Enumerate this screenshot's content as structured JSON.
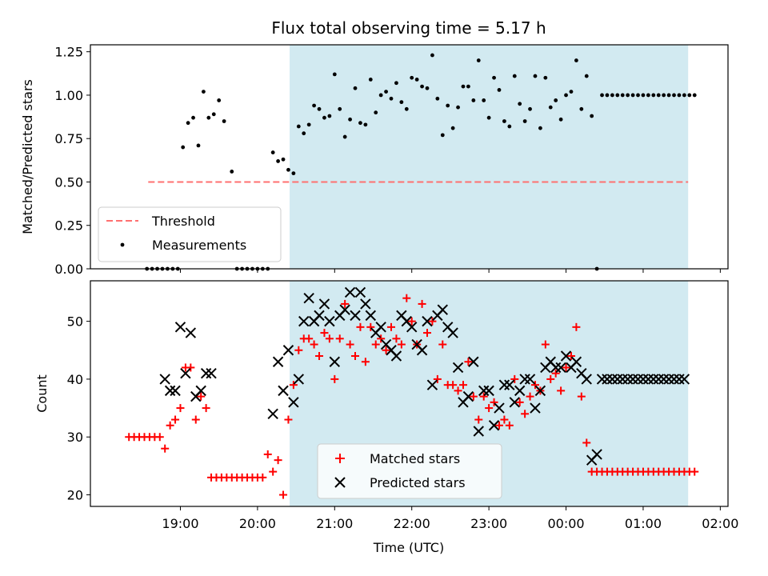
{
  "chart_data": [
    {
      "type": "scatter",
      "title": "Flux total observing time = 5.17 h",
      "ylabel": "Matched/Predicted stars",
      "xlabel": "",
      "x_unit": "minutes after 18:00 UTC",
      "xlim": [
        -10,
        486
      ],
      "ylim": [
        0,
        1.29
      ],
      "yticks": [
        0.0,
        0.25,
        0.5,
        0.75,
        1.0,
        1.25
      ],
      "ytick_labels": [
        "0.00",
        "0.25",
        "0.50",
        "0.75",
        "1.00",
        "1.25"
      ],
      "shaded_span": [
        145,
        455
      ],
      "shade_color": "#add8e6",
      "threshold": {
        "name": "Threshold",
        "value": 0.5,
        "x_range": [
          35,
          455
        ],
        "color": "#ff7070"
      },
      "legend": {
        "position": "lower-left",
        "entries": [
          "Threshold",
          "Measurements"
        ]
      },
      "series": [
        {
          "name": "Measurements",
          "color": "#000000",
          "x": [
            34,
            38,
            42,
            46,
            50,
            54,
            58,
            62,
            66,
            70,
            74,
            78,
            82,
            86,
            90,
            94,
            100,
            104,
            108,
            112,
            116,
            120,
            124,
            128,
            132,
            136,
            140,
            144,
            148,
            152,
            156,
            160,
            164,
            168,
            172,
            176,
            180,
            184,
            188,
            192,
            196,
            200,
            204,
            208,
            212,
            216,
            220,
            224,
            228,
            232,
            236,
            240,
            244,
            248,
            252,
            256,
            260,
            264,
            268,
            272,
            276,
            280,
            284,
            288,
            292,
            296,
            300,
            304,
            308,
            312,
            316,
            320,
            324,
            328,
            332,
            336,
            340,
            344,
            348,
            352,
            356,
            360,
            364,
            368,
            372,
            376,
            380,
            384,
            388,
            392,
            396,
            400,
            404,
            408,
            412,
            416,
            420,
            424,
            428,
            432,
            436,
            440,
            444,
            448,
            452,
            456,
            460
          ],
          "y": [
            0,
            0,
            0,
            0,
            0,
            0,
            0,
            0.7,
            0.84,
            0.87,
            0.71,
            1.02,
            0.87,
            0.89,
            0.97,
            0.85,
            0.56,
            0,
            0,
            0,
            0,
            0,
            0,
            0,
            0.67,
            0.62,
            0.63,
            0.57,
            0.55,
            0.82,
            0.78,
            0.83,
            0.94,
            0.92,
            0.87,
            0.88,
            1.12,
            0.92,
            0.76,
            0.86,
            1.04,
            0.84,
            0.83,
            1.09,
            0.9,
            1.0,
            1.02,
            0.98,
            1.07,
            0.96,
            0.92,
            1.1,
            1.09,
            1.05,
            1.04,
            1.23,
            0.98,
            0.77,
            0.94,
            0.81,
            0.93,
            1.05,
            1.05,
            0.97,
            1.2,
            0.97,
            0.87,
            1.1,
            1.03,
            0.85,
            0.82,
            1.11,
            0.95,
            0.85,
            0.92,
            1.11,
            0.81,
            1.1,
            0.93,
            0.97,
            0.86,
            1.0,
            1.02,
            1.2,
            0.92,
            1.11,
            0.88,
            0.0,
            1.0,
            1.0,
            1.0,
            1.0,
            1.0,
            1.0,
            1.0,
            1.0,
            1.0,
            1.0,
            1.0,
            1.0,
            1.0,
            1.0,
            1.0,
            1.0,
            1.0,
            1.0,
            1.0
          ]
        }
      ]
    },
    {
      "type": "scatter",
      "title": "",
      "ylabel": "Count",
      "xlabel": "Time (UTC)",
      "x_unit": "minutes after 18:00 UTC",
      "xlim": [
        -10,
        486
      ],
      "ylim": [
        18,
        57
      ],
      "yticks": [
        20,
        30,
        40,
        50
      ],
      "ytick_labels": [
        "20",
        "30",
        "40",
        "50"
      ],
      "xticks": [
        60,
        120,
        180,
        240,
        300,
        360,
        420,
        480
      ],
      "xtick_labels": [
        "19:00",
        "20:00",
        "21:00",
        "22:00",
        "23:00",
        "00:00",
        "01:00",
        "02:00"
      ],
      "shaded_span": [
        145,
        455
      ],
      "shade_color": "#add8e6",
      "legend": {
        "position": "lower-center",
        "entries": [
          "Matched stars",
          "Predicted stars"
        ]
      },
      "series": [
        {
          "name": "Matched stars",
          "marker": "plus",
          "color": "#ff0000",
          "x": [
            20,
            24,
            28,
            32,
            36,
            40,
            44,
            48,
            52,
            56,
            60,
            64,
            68,
            72,
            76,
            80,
            84,
            88,
            92,
            96,
            100,
            104,
            108,
            112,
            116,
            120,
            124,
            128,
            132,
            136,
            140,
            144,
            148,
            152,
            156,
            160,
            164,
            168,
            172,
            176,
            180,
            184,
            188,
            192,
            196,
            200,
            204,
            208,
            212,
            216,
            220,
            224,
            228,
            232,
            236,
            240,
            244,
            248,
            252,
            256,
            260,
            264,
            268,
            272,
            276,
            280,
            284,
            288,
            292,
            296,
            300,
            304,
            308,
            312,
            316,
            320,
            324,
            328,
            332,
            336,
            340,
            344,
            348,
            352,
            356,
            360,
            364,
            368,
            372,
            376,
            380,
            384,
            388,
            392,
            396,
            400,
            404,
            408,
            412,
            416,
            420,
            424,
            428,
            432,
            436,
            440,
            444,
            448,
            452,
            456,
            460
          ],
          "y": [
            30,
            30,
            30,
            30,
            30,
            30,
            30,
            28,
            32,
            33,
            35,
            42,
            42,
            33,
            37,
            35,
            23,
            23,
            23,
            23,
            23,
            23,
            23,
            23,
            23,
            23,
            23,
            27,
            24,
            26,
            20,
            33,
            39,
            45,
            47,
            47,
            46,
            44,
            48,
            47,
            40,
            47,
            53,
            46,
            44,
            49,
            43,
            49,
            46,
            47,
            45,
            49,
            47,
            46,
            54,
            50,
            46,
            53,
            48,
            50,
            40,
            46,
            39,
            39,
            38,
            39,
            43,
            37,
            33,
            37,
            35,
            36,
            32,
            33,
            32,
            40,
            36,
            34,
            37,
            39,
            38,
            46,
            40,
            41,
            38,
            42,
            44,
            49,
            37,
            29,
            24,
            24,
            24,
            24,
            24,
            24,
            24,
            24,
            24,
            24,
            24,
            24,
            24,
            24,
            24,
            24,
            24,
            24,
            24,
            24,
            24
          ]
        },
        {
          "name": "Predicted stars",
          "marker": "x",
          "color": "#000000",
          "x": [
            48,
            52,
            56,
            60,
            64,
            68,
            72,
            76,
            80,
            84,
            132,
            136,
            140,
            144,
            148,
            152,
            156,
            160,
            164,
            168,
            172,
            176,
            180,
            184,
            188,
            192,
            196,
            200,
            204,
            208,
            212,
            216,
            220,
            224,
            228,
            232,
            236,
            240,
            244,
            248,
            252,
            256,
            260,
            264,
            268,
            272,
            276,
            280,
            284,
            288,
            292,
            296,
            300,
            304,
            308,
            312,
            316,
            320,
            324,
            328,
            332,
            336,
            340,
            344,
            348,
            352,
            356,
            360,
            364,
            368,
            372,
            376,
            380,
            384,
            388,
            392,
            396,
            400,
            404,
            408,
            412,
            416,
            420,
            424,
            428,
            432,
            436,
            440,
            444,
            448,
            452
          ],
          "y": [
            40,
            38,
            38,
            49,
            41,
            48,
            37,
            38,
            41,
            41,
            34,
            43,
            38,
            45,
            36,
            40,
            50,
            54,
            50,
            51,
            53,
            50,
            43,
            51,
            52,
            55,
            51,
            55,
            53,
            51,
            48,
            49,
            46,
            45,
            44,
            51,
            50,
            49,
            46,
            45,
            50,
            39,
            51,
            52,
            49,
            48,
            42,
            36,
            37,
            43,
            31,
            38,
            38,
            32,
            35,
            39,
            39,
            36,
            38,
            40,
            40,
            35,
            38,
            42,
            43,
            42,
            42,
            44,
            42,
            43,
            41,
            40,
            26,
            27,
            40,
            40,
            40,
            40,
            40,
            40,
            40,
            40,
            40,
            40,
            40,
            40,
            40,
            40,
            40,
            40,
            40
          ]
        }
      ]
    }
  ]
}
